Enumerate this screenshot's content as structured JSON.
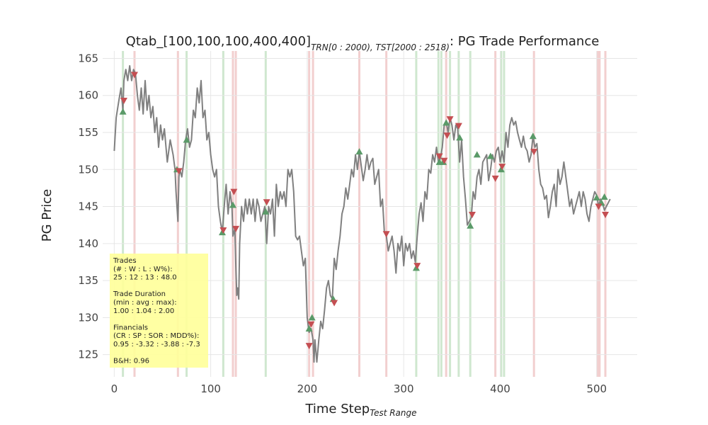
{
  "chart_data": {
    "type": "line",
    "title": {
      "main": "Qtab_[100,100,100,400,400]",
      "sub1": "TRN[0 : 2000), TST[2000 : 2518)",
      "suffix": ": PG Trade Performance"
    },
    "xlabel": {
      "main": "Time Step",
      "sub": "Test Range"
    },
    "ylabel": "PG Price",
    "xlim": [
      -12,
      542
    ],
    "ylim": [
      122,
      166
    ],
    "x_ticks": [
      0,
      100,
      200,
      300,
      400,
      500
    ],
    "y_ticks": [
      125,
      130,
      135,
      140,
      145,
      150,
      155,
      160,
      165
    ],
    "grid": true,
    "colors": {
      "price": "#808080",
      "buy": "#5a9a68",
      "sell": "#c44e52",
      "buy_band": "#cfe7cf",
      "sell_band": "#f2cfcf",
      "grid": "#e6e6e6",
      "info_box": "#ffff99"
    },
    "price_keypoints": [
      [
        0,
        152.5
      ],
      [
        2,
        157
      ],
      [
        5,
        159.5
      ],
      [
        7,
        161
      ],
      [
        9,
        158
      ],
      [
        10,
        162
      ],
      [
        12,
        163.5
      ],
      [
        14,
        162
      ],
      [
        16,
        164
      ],
      [
        18,
        162
      ],
      [
        20,
        163.5
      ],
      [
        22,
        163
      ],
      [
        24,
        160
      ],
      [
        26,
        158
      ],
      [
        28,
        161
      ],
      [
        30,
        157.5
      ],
      [
        32,
        162
      ],
      [
        34,
        158
      ],
      [
        36,
        160
      ],
      [
        38,
        157
      ],
      [
        40,
        158.5
      ],
      [
        42,
        155
      ],
      [
        44,
        157
      ],
      [
        46,
        153
      ],
      [
        48,
        156
      ],
      [
        50,
        154
      ],
      [
        52,
        155.5
      ],
      [
        55,
        151
      ],
      [
        58,
        154
      ],
      [
        61,
        152
      ],
      [
        63,
        150
      ],
      [
        64,
        147
      ],
      [
        66,
        143
      ],
      [
        67,
        149
      ],
      [
        68,
        150
      ],
      [
        70,
        149
      ],
      [
        72,
        151
      ],
      [
        74,
        154
      ],
      [
        76,
        155.5
      ],
      [
        78,
        153
      ],
      [
        80,
        154
      ],
      [
        82,
        158
      ],
      [
        84,
        157
      ],
      [
        86,
        161
      ],
      [
        88,
        159
      ],
      [
        90,
        162
      ],
      [
        92,
        157
      ],
      [
        94,
        158
      ],
      [
        96,
        154
      ],
      [
        98,
        155
      ],
      [
        100,
        152
      ],
      [
        102,
        150
      ],
      [
        104,
        149
      ],
      [
        106,
        150
      ],
      [
        108,
        145
      ],
      [
        110,
        143
      ],
      [
        112,
        141.5
      ],
      [
        114,
        145
      ],
      [
        116,
        148
      ],
      [
        118,
        144
      ],
      [
        120,
        147
      ],
      [
        122,
        145
      ],
      [
        123,
        141
      ],
      [
        125,
        142
      ],
      [
        126,
        137
      ],
      [
        127,
        133
      ],
      [
        128,
        134
      ],
      [
        129,
        132.5
      ],
      [
        130,
        140
      ],
      [
        132,
        145
      ],
      [
        134,
        143
      ],
      [
        136,
        146
      ],
      [
        138,
        144
      ],
      [
        140,
        146
      ],
      [
        142,
        144
      ],
      [
        144,
        146
      ],
      [
        146,
        143
      ],
      [
        148,
        146
      ],
      [
        150,
        145
      ],
      [
        152,
        143
      ],
      [
        154,
        144
      ],
      [
        156,
        145
      ],
      [
        158,
        140
      ],
      [
        160,
        145
      ],
      [
        162,
        144
      ],
      [
        164,
        146
      ],
      [
        166,
        141
      ],
      [
        168,
        148
      ],
      [
        170,
        145
      ],
      [
        172,
        147
      ],
      [
        174,
        146
      ],
      [
        176,
        147
      ],
      [
        178,
        145
      ],
      [
        180,
        150
      ],
      [
        182,
        149
      ],
      [
        184,
        150
      ],
      [
        186,
        147
      ],
      [
        188,
        141
      ],
      [
        190,
        140.5
      ],
      [
        192,
        141
      ],
      [
        194,
        139
      ],
      [
        196,
        137
      ],
      [
        198,
        138
      ],
      [
        200,
        130
      ],
      [
        202,
        128
      ],
      [
        204,
        128.5
      ],
      [
        206,
        127
      ],
      [
        207,
        124
      ],
      [
        208,
        127
      ],
      [
        210,
        124
      ],
      [
        212,
        127
      ],
      [
        214,
        129.5
      ],
      [
        216,
        128.5
      ],
      [
        218,
        131
      ],
      [
        220,
        134
      ],
      [
        222,
        135
      ],
      [
        224,
        133
      ],
      [
        226,
        132.5
      ],
      [
        228,
        138
      ],
      [
        230,
        136.5
      ],
      [
        232,
        139
      ],
      [
        234,
        141
      ],
      [
        236,
        144
      ],
      [
        238,
        145
      ],
      [
        240,
        147.5
      ],
      [
        242,
        146
      ],
      [
        244,
        148
      ],
      [
        246,
        150
      ],
      [
        248,
        149
      ],
      [
        250,
        152
      ],
      [
        252,
        150
      ],
      [
        254,
        152.5
      ],
      [
        256,
        150.5
      ],
      [
        258,
        148.5
      ],
      [
        260,
        150
      ],
      [
        262,
        152
      ],
      [
        264,
        150
      ],
      [
        266,
        151
      ],
      [
        268,
        151.5
      ],
      [
        270,
        148
      ],
      [
        272,
        149
      ],
      [
        274,
        150
      ],
      [
        276,
        145
      ],
      [
        278,
        146
      ],
      [
        280,
        141.5
      ],
      [
        282,
        141
      ],
      [
        284,
        139
      ],
      [
        286,
        140
      ],
      [
        288,
        141
      ],
      [
        290,
        139
      ],
      [
        292,
        136
      ],
      [
        294,
        140
      ],
      [
        296,
        139
      ],
      [
        298,
        141
      ],
      [
        300,
        137
      ],
      [
        302,
        140
      ],
      [
        304,
        139
      ],
      [
        306,
        140
      ],
      [
        308,
        138
      ],
      [
        310,
        139
      ],
      [
        312,
        137.5
      ],
      [
        314,
        141
      ],
      [
        316,
        144
      ],
      [
        318,
        145.5
      ],
      [
        320,
        143
      ],
      [
        322,
        147
      ],
      [
        324,
        146
      ],
      [
        326,
        150
      ],
      [
        328,
        149.5
      ],
      [
        330,
        152
      ],
      [
        332,
        151
      ],
      [
        334,
        153
      ],
      [
        336,
        151
      ],
      [
        338,
        151.5
      ],
      [
        340,
        153
      ],
      [
        342,
        156
      ],
      [
        344,
        156.5
      ],
      [
        346,
        155
      ],
      [
        348,
        157
      ],
      [
        350,
        156
      ],
      [
        352,
        154
      ],
      [
        354,
        156
      ],
      [
        356,
        155.5
      ],
      [
        358,
        151
      ],
      [
        360,
        154
      ],
      [
        362,
        149
      ],
      [
        364,
        146
      ],
      [
        366,
        142.5
      ],
      [
        368,
        143
      ],
      [
        370,
        143.5
      ],
      [
        372,
        147
      ],
      [
        374,
        146
      ],
      [
        376,
        149
      ],
      [
        378,
        150
      ],
      [
        380,
        148
      ],
      [
        382,
        151
      ],
      [
        384,
        151.5
      ],
      [
        386,
        152
      ],
      [
        388,
        148.5
      ],
      [
        390,
        150
      ],
      [
        392,
        152
      ],
      [
        394,
        151
      ],
      [
        396,
        152.5
      ],
      [
        398,
        153
      ],
      [
        400,
        151
      ],
      [
        402,
        152.5
      ],
      [
        404,
        151
      ],
      [
        406,
        155
      ],
      [
        408,
        153
      ],
      [
        410,
        156
      ],
      [
        412,
        157
      ],
      [
        414,
        156
      ],
      [
        416,
        156.5
      ],
      [
        418,
        155
      ],
      [
        420,
        154
      ],
      [
        422,
        153
      ],
      [
        424,
        154.5
      ],
      [
        426,
        153
      ],
      [
        428,
        152.5
      ],
      [
        430,
        151
      ],
      [
        432,
        152
      ],
      [
        434,
        154.5
      ],
      [
        436,
        153
      ],
      [
        438,
        153.5
      ],
      [
        440,
        150
      ],
      [
        442,
        148
      ],
      [
        444,
        147.5
      ],
      [
        446,
        146
      ],
      [
        448,
        146.5
      ],
      [
        450,
        143.5
      ],
      [
        452,
        145
      ],
      [
        454,
        147
      ],
      [
        456,
        148
      ],
      [
        458,
        145
      ],
      [
        460,
        150
      ],
      [
        462,
        148
      ],
      [
        464,
        149
      ],
      [
        466,
        151
      ],
      [
        468,
        149
      ],
      [
        470,
        147
      ],
      [
        472,
        145
      ],
      [
        474,
        146
      ],
      [
        476,
        144
      ],
      [
        478,
        145
      ],
      [
        480,
        146
      ],
      [
        482,
        147
      ],
      [
        484,
        145
      ],
      [
        486,
        147
      ],
      [
        488,
        146
      ],
      [
        490,
        144
      ],
      [
        492,
        143
      ],
      [
        494,
        145
      ],
      [
        496,
        146
      ],
      [
        498,
        147
      ],
      [
        500,
        146.5
      ],
      [
        502,
        145
      ],
      [
        504,
        146
      ],
      [
        506,
        145.5
      ],
      [
        508,
        144.5
      ],
      [
        510,
        145
      ],
      [
        512,
        145.5
      ],
      [
        514,
        146
      ]
    ],
    "buy_points": [
      [
        9,
        157.8
      ],
      [
        65,
        150
      ],
      [
        75,
        154
      ],
      [
        112,
        141.5
      ],
      [
        123,
        145.2
      ],
      [
        157,
        144.3
      ],
      [
        202,
        128.5
      ],
      [
        205,
        130
      ],
      [
        227,
        132.5
      ],
      [
        254,
        152.4
      ],
      [
        313,
        136.7
      ],
      [
        337,
        151
      ],
      [
        341,
        151
      ],
      [
        344,
        156.3
      ],
      [
        358,
        154.3
      ],
      [
        369,
        142.4
      ],
      [
        376,
        152
      ],
      [
        390,
        151.8
      ],
      [
        401,
        150
      ],
      [
        434,
        154.5
      ],
      [
        500,
        146.2
      ],
      [
        505,
        145.5
      ],
      [
        508,
        146.3
      ]
    ],
    "sell_points": [
      [
        10,
        159.3
      ],
      [
        21,
        162.8
      ],
      [
        67,
        149.8
      ],
      [
        113,
        141.8
      ],
      [
        124,
        147
      ],
      [
        126,
        142
      ],
      [
        158,
        145.6
      ],
      [
        202,
        126.2
      ],
      [
        204,
        129.1
      ],
      [
        228,
        132
      ],
      [
        282,
        141.3
      ],
      [
        314,
        137
      ],
      [
        337,
        151.8
      ],
      [
        342,
        151.2
      ],
      [
        345,
        154.6
      ],
      [
        348,
        156.8
      ],
      [
        357,
        155.9
      ],
      [
        371,
        143.9
      ],
      [
        395,
        148.8
      ],
      [
        402,
        150.4
      ],
      [
        435,
        152.4
      ],
      [
        502,
        145
      ],
      [
        509,
        143.9
      ]
    ],
    "buy_bands": [
      9,
      75,
      113,
      157,
      313,
      336,
      339,
      348,
      357,
      369,
      401,
      404
    ],
    "sell_bands": [
      21,
      66,
      123,
      126,
      202,
      206,
      254,
      282,
      344,
      395,
      435,
      501,
      503,
      509
    ],
    "info_box": {
      "lines": [
        "Trades",
        "(# : W : L : W%):",
        "25 : 12 : 13 : 48.0",
        "",
        "Trade Duration",
        "(min : avg : max):",
        "1.00 : 1.04 : 2.00",
        "",
        "Financials",
        "(CR : SP : SOR : MDD%):",
        "0.95 : -3.32 : -3.88 : -7.3",
        "",
        "B&H: 0.96"
      ]
    }
  }
}
